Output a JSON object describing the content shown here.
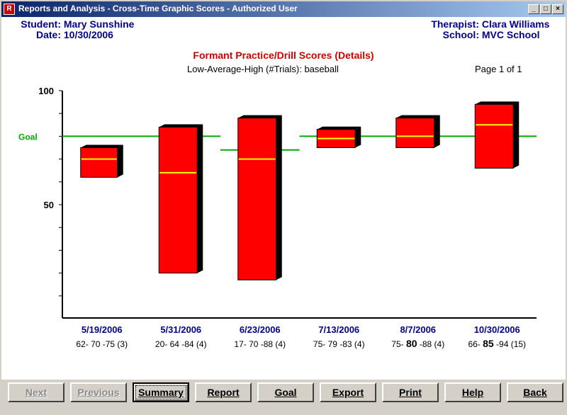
{
  "window": {
    "title": "Reports and Analysis - Cross-Time Graphic Scores - Authorized User",
    "app_icon": "R",
    "controls": {
      "minimize": "_",
      "maximize": "□",
      "close": "×"
    }
  },
  "header": {
    "student_label": "Student:",
    "student_value": "Mary Sunshine",
    "date_label": "Date:",
    "date_value": "10/30/2006",
    "therapist_label": "Therapist:",
    "therapist_value": "Clara Williams",
    "school_label": "School:",
    "school_value": "MVC School"
  },
  "report": {
    "title": "Formant Practice/Drill Scores (Details)",
    "subtitle": "Low-Average-High (#Trials): baseball",
    "page_indicator": "Page 1 of 1"
  },
  "chart_data": {
    "type": "bar",
    "subtype": "floating-range",
    "title": "Formant Practice/Drill Scores (Details)",
    "ytick_labels": [
      "100",
      "50"
    ],
    "goal_label": "Goal",
    "categories": [
      "5/19/2006",
      "5/31/2006",
      "6/23/2006",
      "7/13/2006",
      "8/7/2006",
      "10/30/2006"
    ],
    "series": [
      {
        "low": [
          62,
          20,
          17,
          75,
          75,
          66
        ],
        "average": [
          70,
          64,
          70,
          79,
          80,
          85
        ],
        "high": [
          75,
          84,
          88,
          83,
          88,
          94
        ],
        "trials": [
          3,
          4,
          4,
          4,
          4,
          15
        ]
      }
    ],
    "goal": [
      80,
      80,
      74,
      80,
      80,
      80
    ],
    "detail_labels": [
      {
        "pre": "62- 70 -75 (3)",
        "bold": "",
        "post": ""
      },
      {
        "pre": "20- 64 -84 (4)",
        "bold": "",
        "post": ""
      },
      {
        "pre": "17- 70 -88 (4)",
        "bold": "",
        "post": ""
      },
      {
        "pre": "75- 79 -83 (4)",
        "bold": "",
        "post": ""
      },
      {
        "pre": "75- ",
        "bold": "80",
        "post": " -88 (4)"
      },
      {
        "pre": "66- ",
        "bold": "85",
        "post": " -94 (15)"
      }
    ],
    "colors": {
      "bar": "#ff0000",
      "shadow": "#000000",
      "average": "#ffff00",
      "goal": "#00aa00",
      "date": "#00008b",
      "axis": "#000000"
    }
  },
  "buttons": [
    {
      "label": "Next",
      "enabled": false
    },
    {
      "label": "Previous",
      "enabled": false
    },
    {
      "label": "Summary",
      "enabled": true,
      "focused": true
    },
    {
      "label": "Report",
      "enabled": true
    },
    {
      "label": "Goal",
      "enabled": true
    },
    {
      "label": "Export",
      "enabled": true
    },
    {
      "label": "Print",
      "enabled": true
    },
    {
      "label": "Help",
      "enabled": true
    },
    {
      "label": "Back",
      "enabled": true
    }
  ]
}
